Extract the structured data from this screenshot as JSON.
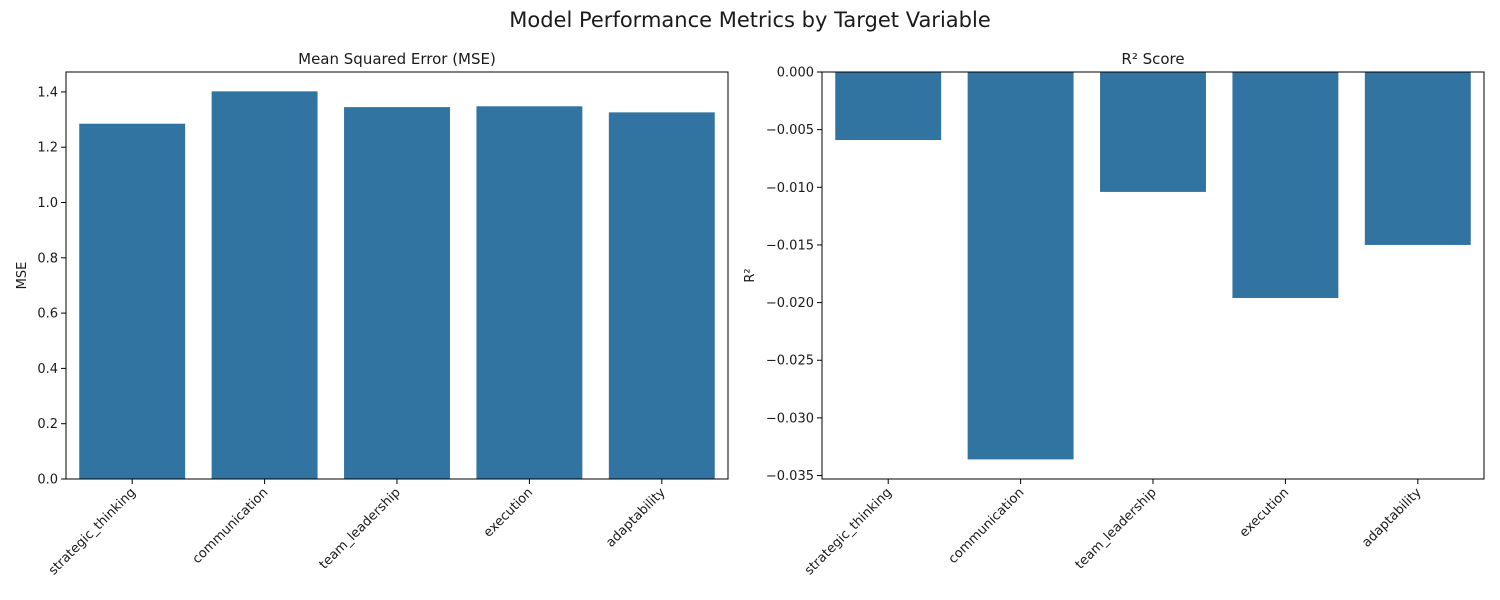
{
  "figure": {
    "suptitle": "Model Performance Metrics by Target Variable"
  },
  "chart_data": [
    {
      "type": "bar",
      "title": "Mean Squared Error (MSE)",
      "xlabel": "",
      "ylabel": "MSE",
      "categories": [
        "strategic_thinking",
        "communication",
        "team_leadership",
        "execution",
        "adaptability"
      ],
      "values": [
        1.285,
        1.402,
        1.345,
        1.348,
        1.326
      ],
      "ylim": [
        0,
        1.472
      ],
      "yticks": [
        0.0,
        0.2,
        0.4,
        0.6,
        0.8,
        1.0,
        1.2,
        1.4
      ],
      "ytick_labels": [
        "0.0",
        "0.2",
        "0.4",
        "0.6",
        "0.8",
        "1.0",
        "1.2",
        "1.4"
      ],
      "bar_color": "#3274a1",
      "grid": false
    },
    {
      "type": "bar",
      "title": "R² Score",
      "xlabel": "",
      "ylabel": "R²",
      "categories": [
        "strategic_thinking",
        "communication",
        "team_leadership",
        "execution",
        "adaptability"
      ],
      "values": [
        -0.0059,
        -0.0336,
        -0.0104,
        -0.0196,
        -0.015
      ],
      "ylim": [
        -0.0353,
        0
      ],
      "yticks": [
        0.0,
        -0.005,
        -0.01,
        -0.015,
        -0.02,
        -0.025,
        -0.03,
        -0.035
      ],
      "ytick_labels": [
        "0.000",
        "−0.005",
        "−0.010",
        "−0.015",
        "−0.020",
        "−0.025",
        "−0.030",
        "−0.035"
      ],
      "bar_color": "#3274a1",
      "grid": false
    }
  ]
}
